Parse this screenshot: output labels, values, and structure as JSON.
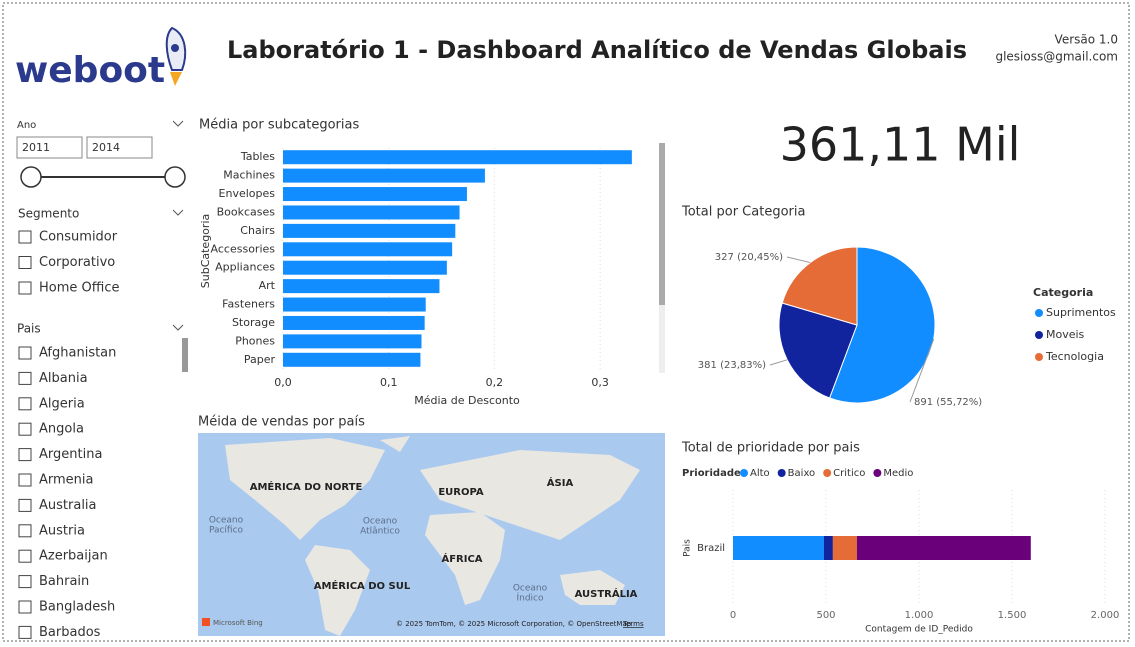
{
  "header": {
    "logo": "weboot",
    "title": "Laboratório 1  - Dashboard Analítico de Vendas Globais",
    "version": "Versão 1.0",
    "email": "glesioss@gmail.com"
  },
  "filters": {
    "year": {
      "label": "Ano",
      "from": "2011",
      "to": "2014"
    },
    "segment": {
      "label": "Segmento",
      "options": [
        "Consumidor",
        "Corporativo",
        "Home Office"
      ]
    },
    "country": {
      "label": "Pais",
      "options": [
        "Afghanistan",
        "Albania",
        "Algeria",
        "Angola",
        "Argentina",
        "Armenia",
        "Australia",
        "Austria",
        "Azerbaijan",
        "Bahrain",
        "Bangladesh",
        "Barbados"
      ]
    }
  },
  "kpi": {
    "value": "361,11 Mil"
  },
  "map": {
    "title": "Méida de vendas por país",
    "labels": [
      "AMÉRICA DO NORTE",
      "EUROPA",
      "ÁSIA",
      "ÁFRICA",
      "AMÉRICA DO SUL",
      "AUSTRÁLIA"
    ],
    "oceans": [
      [
        "Oceano",
        "Pacífico"
      ],
      [
        "Oceano",
        "Atlântico"
      ],
      [
        "Oceano",
        "Índico"
      ]
    ],
    "brand": "Microsoft Bing",
    "attribution": "© 2025 TomTom, © 2025 Microsoft Corporation, © OpenStreetMap",
    "terms": "Terms"
  },
  "chart_data": [
    {
      "type": "hbar",
      "title": "Média por subcategorias",
      "x_label": "Média de Desconto",
      "y_label": "SubCategoria",
      "categories": [
        "Tables",
        "Machines",
        "Envelopes",
        "Bookcases",
        "Chairs",
        "Accessories",
        "Appliances",
        "Art",
        "Fasteners",
        "Storage",
        "Phones",
        "Paper"
      ],
      "values": [
        0.33,
        0.191,
        0.174,
        0.167,
        0.163,
        0.16,
        0.155,
        0.148,
        0.135,
        0.134,
        0.131,
        0.13
      ],
      "color": "#118dff",
      "xlim": [
        0,
        0.35
      ],
      "xticks": [
        {
          "value": 0,
          "label": "0,0"
        },
        {
          "value": 0.1,
          "label": "0,1"
        },
        {
          "value": 0.2,
          "label": "0,2"
        },
        {
          "value": 0.3,
          "label": "0,3"
        }
      ],
      "grid": true
    },
    {
      "type": "pie",
      "title": "Total por Categoria",
      "legend_title": "Categoria",
      "categories": [
        "Suprimentos",
        "Moveis",
        "Tecnologia"
      ],
      "values": [
        891,
        381,
        327
      ],
      "value_labels": [
        "891 (55,72%)",
        "381 (23,83%)",
        "327 (20,45%)"
      ],
      "colors": [
        "#118dff",
        "#12239e",
        "#e66c37"
      ],
      "legend": "right"
    },
    {
      "type": "stacked_hbar",
      "title": "Total de prioridade por pais",
      "legend_title": "Prioridade",
      "x_label": "Contagem de ID_Pedido",
      "y_label": "Pais",
      "categories": [
        "Brazil"
      ],
      "series": [
        {
          "name": "Alto",
          "color": "#118dff",
          "values": [
            489
          ]
        },
        {
          "name": "Baixo",
          "color": "#12239e",
          "values": [
            48
          ]
        },
        {
          "name": "Critico",
          "color": "#e66c37",
          "values": [
            129
          ]
        },
        {
          "name": "Medio",
          "color": "#6b007b",
          "values": [
            935
          ]
        }
      ],
      "xlim": [
        0,
        2000
      ],
      "xticks": [
        0,
        500,
        {
          "value": 1000,
          "label": "1.000"
        },
        {
          "value": 1500,
          "label": "1.500"
        },
        {
          "value": 2000,
          "label": "2.000"
        }
      ],
      "grid": true,
      "legend": "top"
    }
  ]
}
